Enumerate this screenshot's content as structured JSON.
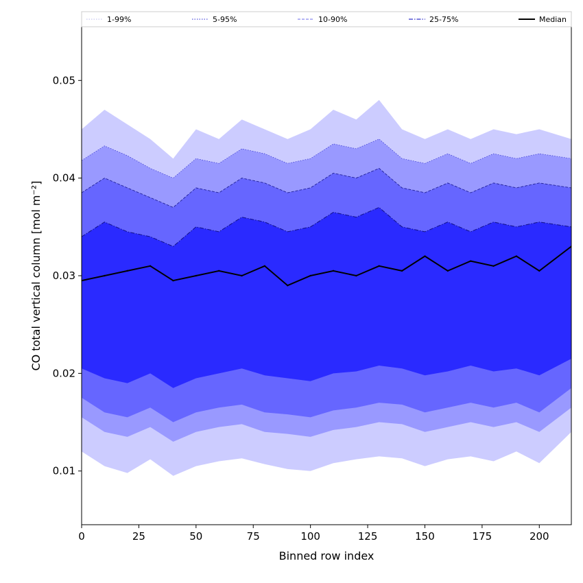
{
  "chart_data": {
    "type": "area",
    "title": "",
    "xlabel": "Binned row index",
    "ylabel": "CO total vertical column [mol m⁻²]",
    "xlim": [
      0,
      214
    ],
    "ylim": [
      0.0045,
      0.0555
    ],
    "xticks": [
      {
        "value": 0,
        "label": "0"
      },
      {
        "value": 25,
        "label": "25"
      },
      {
        "value": 50,
        "label": "50"
      },
      {
        "value": 75,
        "label": "75"
      },
      {
        "value": 100,
        "label": "100"
      },
      {
        "value": 125,
        "label": "125"
      },
      {
        "value": 150,
        "label": "150"
      },
      {
        "value": 175,
        "label": "175"
      },
      {
        "value": 200,
        "label": "200"
      }
    ],
    "yticks": [
      {
        "value": 0.01,
        "label": "0.01"
      },
      {
        "value": 0.02,
        "label": "0.02"
      },
      {
        "value": 0.03,
        "label": "0.03"
      },
      {
        "value": 0.04,
        "label": "0.04"
      },
      {
        "value": 0.05,
        "label": "0.05"
      }
    ],
    "grid": false,
    "legend_position": "top",
    "legend": [
      {
        "label": "1-99%",
        "style": "dotted",
        "color": "#c8c8f0"
      },
      {
        "label": "5-95%",
        "style": "dotted",
        "color": "#5555dd"
      },
      {
        "label": "10-90%",
        "style": "dashed",
        "color": "#8888ee"
      },
      {
        "label": "25-75%",
        "style": "dashdot",
        "color": "#3333cc"
      },
      {
        "label": "Median",
        "style": "solid",
        "color": "#000000"
      }
    ],
    "x": [
      0,
      10,
      20,
      30,
      40,
      50,
      60,
      70,
      80,
      90,
      100,
      110,
      120,
      130,
      140,
      150,
      160,
      170,
      180,
      190,
      200,
      214
    ],
    "series": [
      {
        "name": "1-99%",
        "color": "#ccccff",
        "low": [
          0.012,
          0.0105,
          0.0098,
          0.0112,
          0.0095,
          0.0105,
          0.011,
          0.0113,
          0.0107,
          0.0102,
          0.01,
          0.0108,
          0.0112,
          0.0115,
          0.0113,
          0.0105,
          0.0112,
          0.0115,
          0.011,
          0.012,
          0.0108,
          0.014
        ],
        "high": [
          0.045,
          0.047,
          0.0455,
          0.044,
          0.042,
          0.045,
          0.044,
          0.046,
          0.045,
          0.044,
          0.045,
          0.047,
          0.046,
          0.048,
          0.045,
          0.044,
          0.045,
          0.044,
          0.045,
          0.0445,
          0.045,
          0.044
        ]
      },
      {
        "name": "5-95%",
        "color": "#9999ff",
        "low": [
          0.0155,
          0.014,
          0.0135,
          0.0145,
          0.013,
          0.014,
          0.0145,
          0.0148,
          0.014,
          0.0138,
          0.0135,
          0.0142,
          0.0145,
          0.015,
          0.0148,
          0.014,
          0.0145,
          0.015,
          0.0145,
          0.015,
          0.014,
          0.0165
        ]
      },
      {
        "name": "10-90%",
        "color": "#6666ff",
        "low": [
          0.0175,
          0.016,
          0.0155,
          0.0165,
          0.015,
          0.016,
          0.0165,
          0.0168,
          0.016,
          0.0158,
          0.0155,
          0.0162,
          0.0165,
          0.017,
          0.0168,
          0.016,
          0.0165,
          0.017,
          0.0165,
          0.017,
          0.016,
          0.0185
        ],
        "high": [
          0.0385,
          0.04,
          0.039,
          0.038,
          0.037,
          0.039,
          0.0385,
          0.04,
          0.0395,
          0.0385,
          0.039,
          0.0405,
          0.04,
          0.041,
          0.039,
          0.0385,
          0.0395,
          0.0385,
          0.0395,
          0.039,
          0.0395,
          0.039
        ]
      },
      {
        "name": "25-75%",
        "color": "#2a2aff",
        "low": [
          0.0205,
          0.0195,
          0.019,
          0.02,
          0.0185,
          0.0195,
          0.02,
          0.0205,
          0.0198,
          0.0195,
          0.0192,
          0.02,
          0.0202,
          0.0208,
          0.0205,
          0.0198,
          0.0202,
          0.0208,
          0.0202,
          0.0205,
          0.0198,
          0.0215
        ],
        "high": [
          0.034,
          0.0355,
          0.0345,
          0.034,
          0.033,
          0.035,
          0.0345,
          0.036,
          0.0355,
          0.0345,
          0.035,
          0.0365,
          0.036,
          0.037,
          0.035,
          0.0345,
          0.0355,
          0.0345,
          0.0355,
          0.035,
          0.0355,
          0.035
        ]
      },
      {
        "name": "Median",
        "color": "#000000",
        "values": [
          0.0295,
          0.03,
          0.0305,
          0.031,
          0.0295,
          0.03,
          0.0305,
          0.03,
          0.031,
          0.029,
          0.03,
          0.0305,
          0.03,
          0.031,
          0.0305,
          0.032,
          0.0305,
          0.0315,
          0.031,
          0.032,
          0.0305,
          0.033
        ]
      }
    ]
  }
}
